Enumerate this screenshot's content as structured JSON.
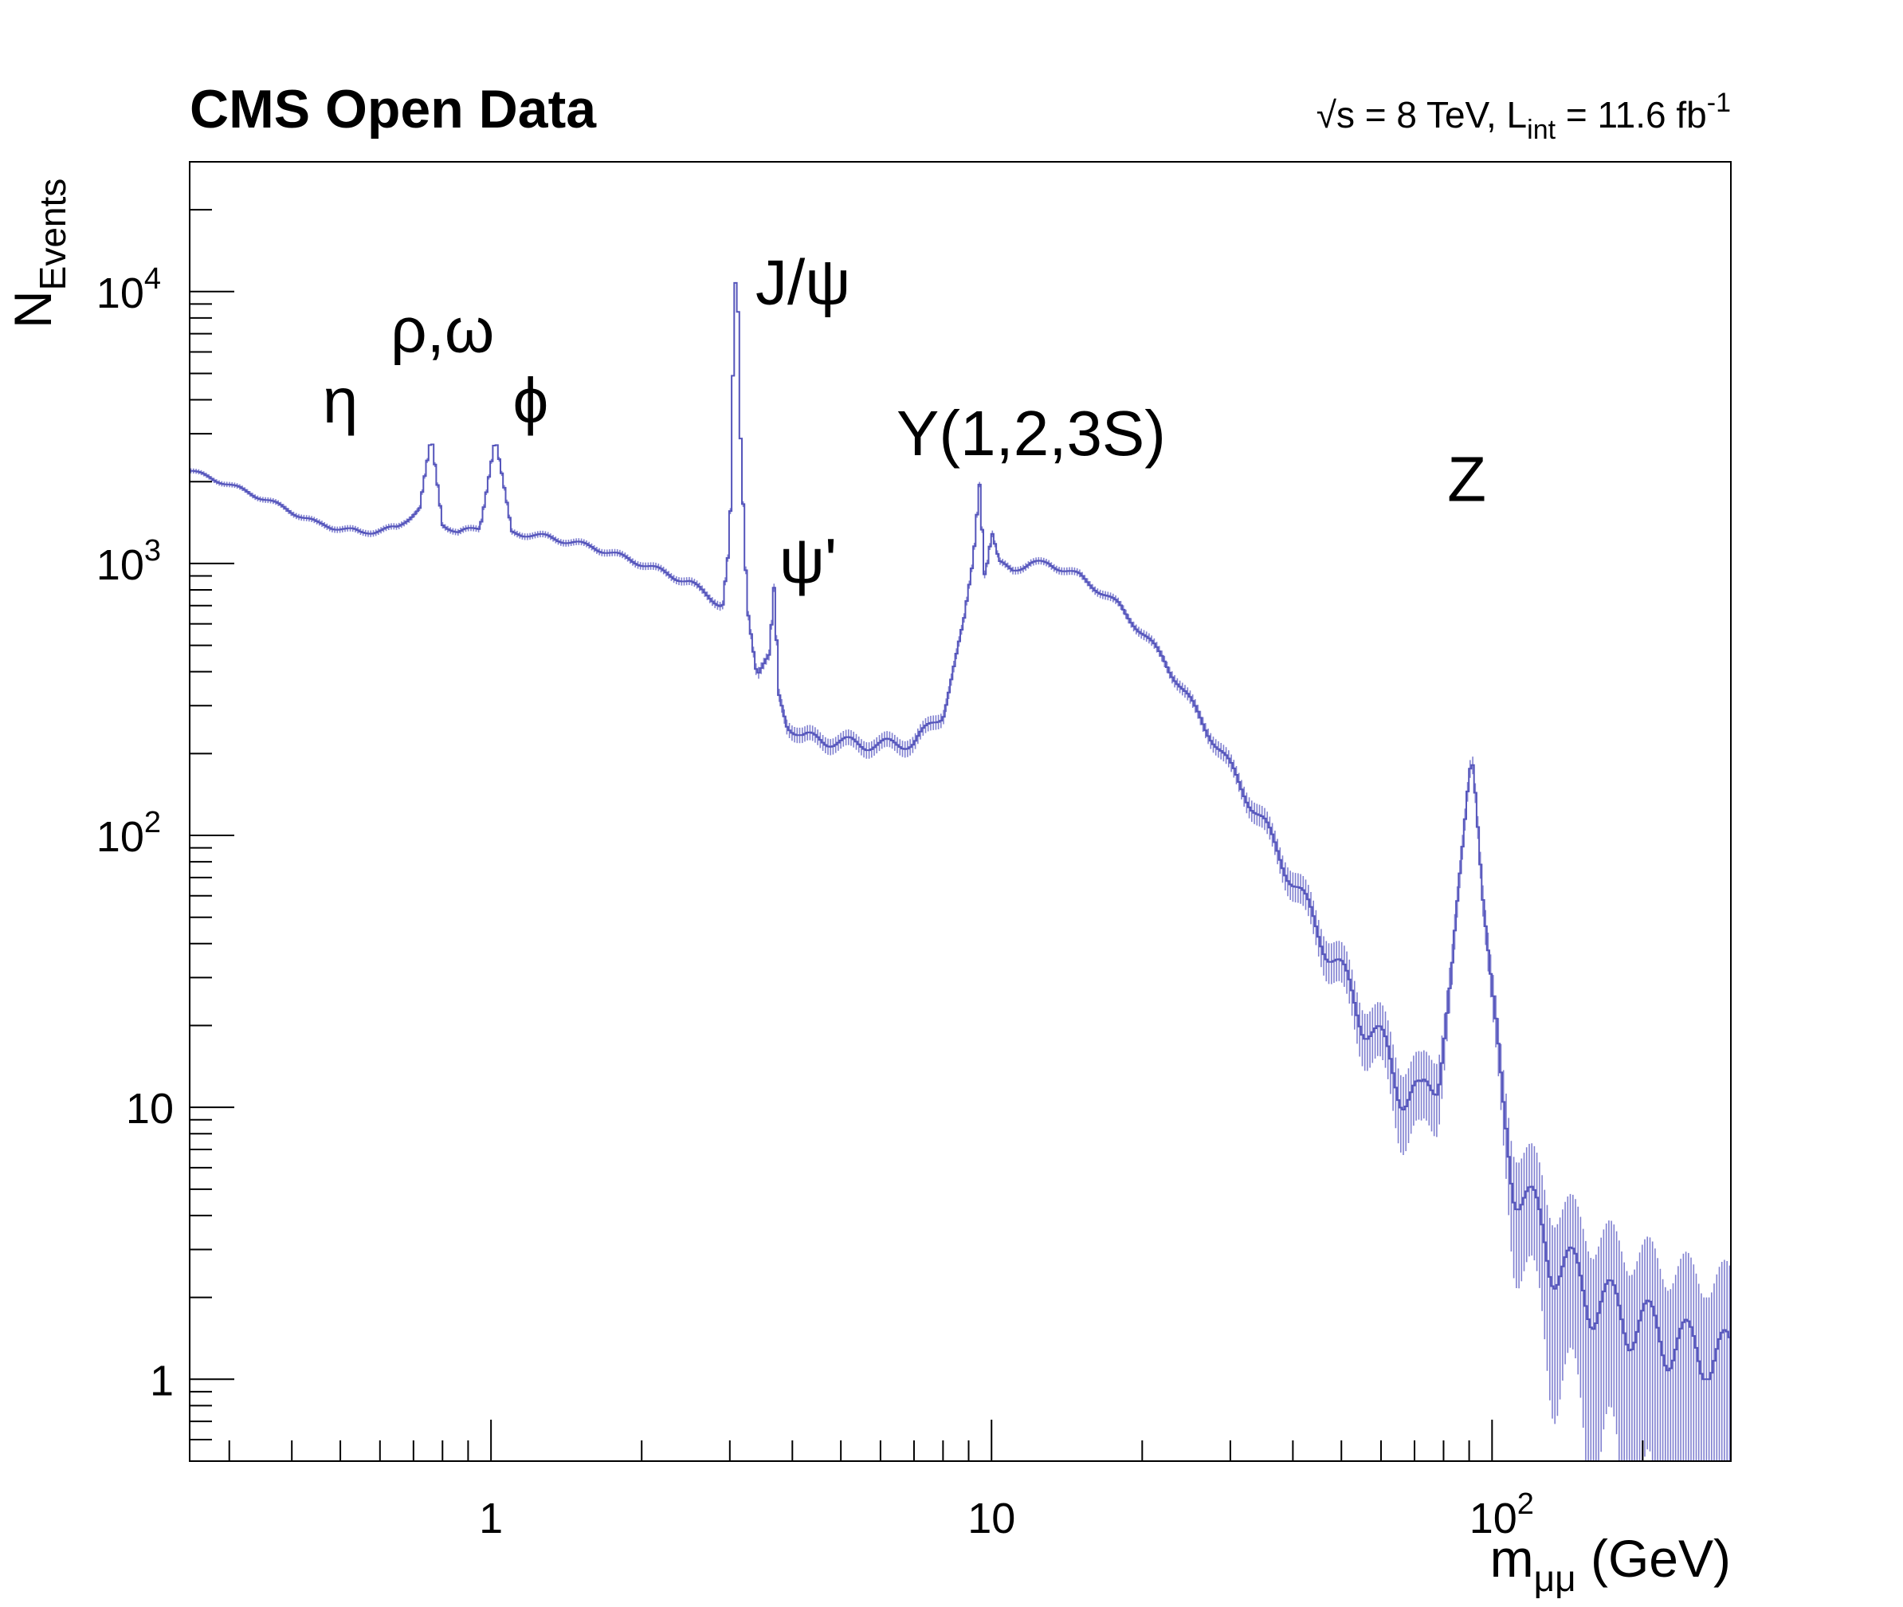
{
  "chart_data": {
    "type": "line",
    "title": "CMS Open Data",
    "subtitle": {
      "sqrt_symbol": "√",
      "s_label": "s = 8 TeV, L",
      "int_sub": "int",
      "lumi_tail": " = 11.6 fb",
      "inv_sup": "-1"
    },
    "xlabel": {
      "base": "m",
      "sub": "μμ",
      "unit": " (GeV)"
    },
    "ylabel": {
      "base": "N",
      "sub": "Events"
    },
    "xscale": "log",
    "yscale": "log",
    "xlim": [
      0.25,
      300
    ],
    "ylim": [
      0.5,
      30000
    ],
    "xticks": [
      {
        "value": 1,
        "base": "1",
        "sup": ""
      },
      {
        "value": 10,
        "base": "10",
        "sup": ""
      },
      {
        "value": 100,
        "base": "10",
        "sup": "2"
      }
    ],
    "yticks": [
      {
        "value": 1,
        "base": "1",
        "sup": ""
      },
      {
        "value": 10,
        "base": "10",
        "sup": ""
      },
      {
        "value": 100,
        "base": "10",
        "sup": "2"
      },
      {
        "value": 1000,
        "base": "10",
        "sup": "3"
      },
      {
        "value": 10000,
        "base": "10",
        "sup": "4"
      }
    ],
    "annotations": [
      {
        "text": "η",
        "x": 0.5,
        "y": 3300
      },
      {
        "text": "ρ,ω",
        "x": 0.8,
        "y": 6000
      },
      {
        "text": "ϕ",
        "x": 1.2,
        "y": 3300
      },
      {
        "text": "J/ψ",
        "x": 4.2,
        "y": 9000
      },
      {
        "text": "ψ'",
        "x": 4.3,
        "y": 850
      },
      {
        "text": "Υ(1,2,3S)",
        "x": 12.0,
        "y": 2500
      },
      {
        "text": "Z",
        "x": 89.0,
        "y": 1700
      }
    ],
    "grid": false,
    "line_color": "#5555bb",
    "error_color": "#8080d0",
    "series": [
      {
        "x": [
          0.25,
          0.3,
          0.36,
          0.45,
          0.55,
          0.65,
          0.72,
          0.76,
          0.8,
          0.86,
          0.95,
          1.02,
          1.1,
          1.3,
          1.6,
          2.0,
          2.5,
          2.9,
          3.0,
          3.05,
          3.097,
          3.15,
          3.25,
          3.4,
          3.6,
          3.686,
          3.75,
          3.9,
          4.2,
          5.0,
          6.0,
          7.0,
          8.0,
          8.8,
          9.2,
          9.46,
          9.7,
          10.02,
          10.36,
          11.0,
          12.0,
          13.0,
          15.0,
          18.0,
          22.0,
          28.0,
          35.0,
          45.0,
          55.0,
          65.0,
          72.0,
          78.0,
          83.0,
          87.0,
          90.0,
          91.2,
          93.0,
          96.0,
          100.0,
          105.0,
          110.0,
          130.0,
          160.0,
          200.0,
          250.0,
          300.0
        ],
        "y": [
          2200,
          1950,
          1700,
          1400,
          1300,
          1350,
          1600,
          2900,
          1400,
          1300,
          1350,
          2900,
          1300,
          1250,
          1150,
          1000,
          850,
          700,
          1200,
          6000,
          15000,
          3000,
          700,
          400,
          450,
          850,
          330,
          260,
          230,
          220,
          215,
          220,
          280,
          600,
          1050,
          2000,
          900,
          1300,
          1000,
          950,
          1000,
          1000,
          900,
          700,
          450,
          220,
          110,
          45,
          22,
          13,
          10,
          14,
          30,
          80,
          170,
          200,
          140,
          60,
          25,
          10,
          6,
          3,
          2,
          1.6,
          1.3,
          1.2
        ]
      }
    ]
  }
}
